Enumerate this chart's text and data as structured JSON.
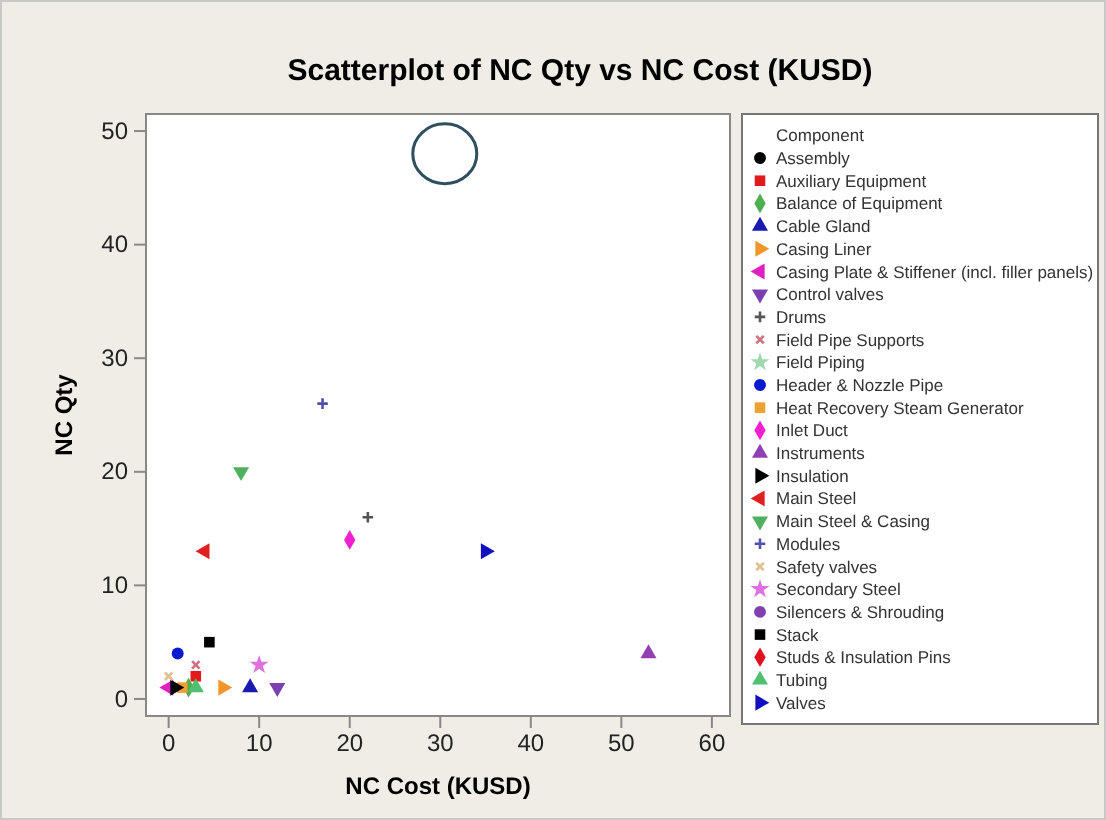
{
  "chart_data": {
    "type": "scatter",
    "title": "Scatterplot of NC Qty vs NC Cost (KUSD)",
    "xlabel": "NC Cost (KUSD)",
    "ylabel": "NC Qty",
    "legend_title": "Component",
    "legend": "right",
    "grid": false,
    "xlim": [
      -2.5,
      62
    ],
    "ylim": [
      -1.5,
      51.5
    ],
    "xticks": [
      0,
      10,
      20,
      30,
      40,
      50,
      60
    ],
    "yticks": [
      0,
      10,
      20,
      30,
      40,
      50
    ],
    "series": [
      {
        "name": "Assembly",
        "color": "#000000",
        "marker": "circle",
        "x": [
          null
        ],
        "values": [
          null
        ]
      },
      {
        "name": "Auxiliary Equipment",
        "color": "#e31a1c",
        "marker": "square",
        "x": [
          3
        ],
        "values": [
          2
        ]
      },
      {
        "name": "Balance of Equipment",
        "color": "#4caf50",
        "marker": "diamond",
        "x": [
          2.2
        ],
        "values": [
          1
        ]
      },
      {
        "name": "Cable Gland",
        "color": "#1a1ab0",
        "marker": "triangle",
        "x": [
          9
        ],
        "values": [
          1
        ]
      },
      {
        "name": "Casing Liner",
        "color": "#f0962a",
        "marker": "triangle-right",
        "x": [
          6
        ],
        "values": [
          1
        ]
      },
      {
        "name": "Casing Plate & Stiffener (incl. filler panels)",
        "color": "#e020c0",
        "marker": "triangle-left",
        "x": [
          0
        ],
        "values": [
          1
        ]
      },
      {
        "name": "Control valves",
        "color": "#7b3fb0",
        "marker": "triangle-down",
        "x": [
          12
        ],
        "values": [
          1
        ]
      },
      {
        "name": "Drums",
        "color": "#555555",
        "marker": "plus",
        "x": [
          22
        ],
        "values": [
          16
        ]
      },
      {
        "name": "Field Pipe Supports",
        "color": "#d07080",
        "marker": "cross",
        "x": [
          3
        ],
        "values": [
          3
        ]
      },
      {
        "name": "Field Piping",
        "color": "#a0d8b0",
        "marker": "star",
        "x": [
          null
        ],
        "values": [
          null
        ]
      },
      {
        "name": "Header & Nozzle Pipe",
        "color": "#0a1ad0",
        "marker": "circle",
        "x": [
          1
        ],
        "values": [
          4
        ]
      },
      {
        "name": "Heat Recovery Steam Generator",
        "color": "#f0a030",
        "marker": "square",
        "x": [
          1.5
        ],
        "values": [
          1
        ]
      },
      {
        "name": "Inlet Duct",
        "color": "#f020d0",
        "marker": "diamond",
        "x": [
          20
        ],
        "values": [
          14
        ]
      },
      {
        "name": "Instruments",
        "color": "#9040b0",
        "marker": "triangle",
        "x": [
          53
        ],
        "values": [
          4
        ]
      },
      {
        "name": "Insulation",
        "color": "#000000",
        "marker": "triangle-right",
        "x": [
          0.7
        ],
        "values": [
          1
        ]
      },
      {
        "name": "Main Steel",
        "color": "#e02020",
        "marker": "triangle-left",
        "x": [
          4
        ],
        "values": [
          13
        ]
      },
      {
        "name": "Main Steel & Casing",
        "color": "#50b060",
        "marker": "triangle-down",
        "x": [
          8
        ],
        "values": [
          20
        ]
      },
      {
        "name": "Modules",
        "color": "#5050b0",
        "marker": "plus",
        "x": [
          17
        ],
        "values": [
          26
        ]
      },
      {
        "name": "Safety valves",
        "color": "#e0c090",
        "marker": "cross",
        "x": [
          0
        ],
        "values": [
          2
        ]
      },
      {
        "name": "Secondary Steel",
        "color": "#e070e0",
        "marker": "star",
        "x": [
          10
        ],
        "values": [
          3
        ]
      },
      {
        "name": "Silencers & Shrouding",
        "color": "#8040b0",
        "marker": "circle",
        "x": [
          null
        ],
        "values": [
          null
        ]
      },
      {
        "name": "Stack",
        "color": "#000000",
        "marker": "square",
        "x": [
          4.5
        ],
        "values": [
          5
        ]
      },
      {
        "name": "Studs & Insulation Pins",
        "color": "#e01020",
        "marker": "diamond",
        "x": [
          null
        ],
        "values": [
          null
        ]
      },
      {
        "name": "Tubing",
        "color": "#50c070",
        "marker": "triangle",
        "x": [
          3
        ],
        "values": [
          1
        ]
      },
      {
        "name": "Valves",
        "color": "#1010c0",
        "marker": "triangle-right",
        "x": [
          35
        ],
        "values": [
          13
        ]
      }
    ]
  }
}
